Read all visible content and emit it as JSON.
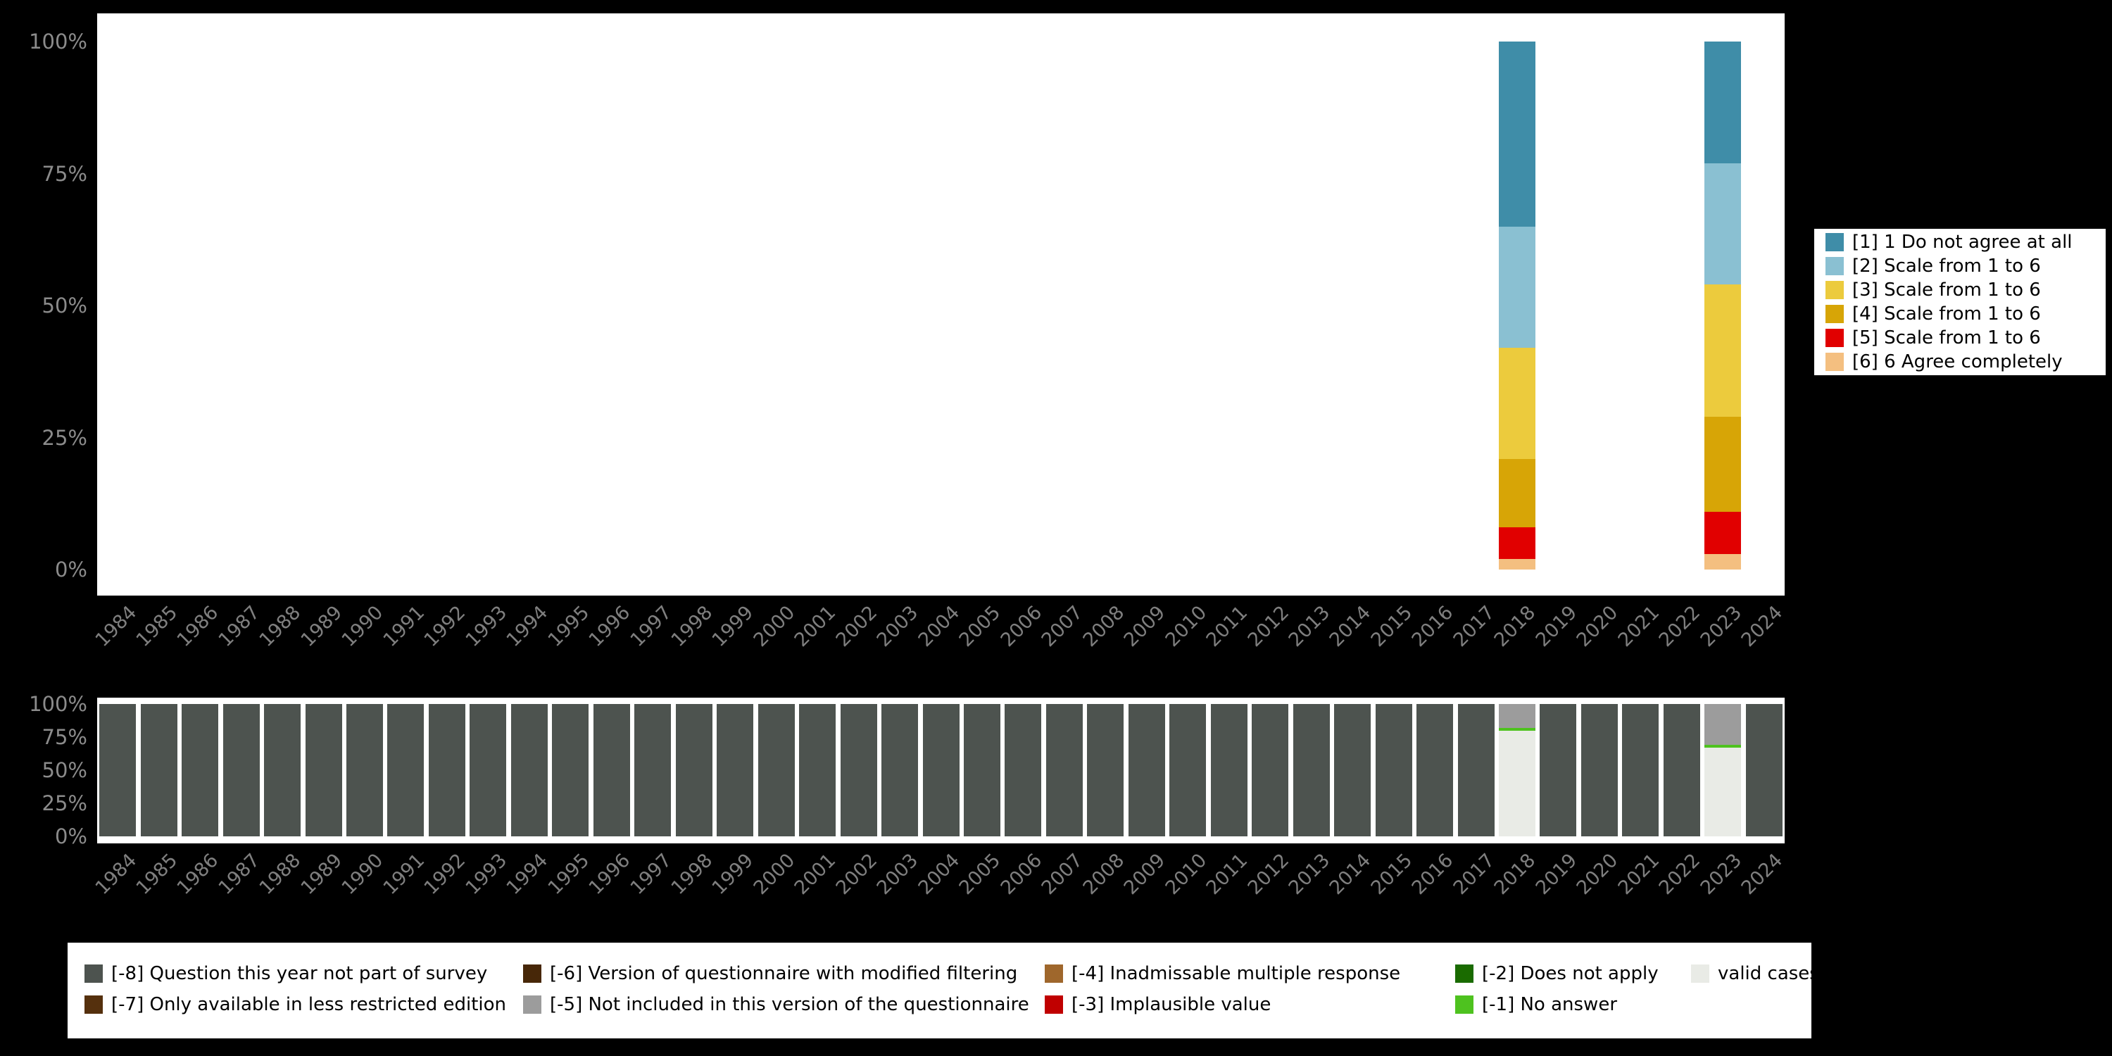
{
  "background_color": "#000000",
  "axes": {
    "years": [
      "1984",
      "1985",
      "1986",
      "1987",
      "1988",
      "1989",
      "1990",
      "1991",
      "1992",
      "1993",
      "1994",
      "1995",
      "1996",
      "1997",
      "1998",
      "1999",
      "2000",
      "2001",
      "2002",
      "2003",
      "2004",
      "2005",
      "2006",
      "2007",
      "2008",
      "2009",
      "2010",
      "2011",
      "2012",
      "2013",
      "2014",
      "2015",
      "2016",
      "2017",
      "2018",
      "2019",
      "2020",
      "2021",
      "2022",
      "2023",
      "2024"
    ]
  },
  "chart_data": [
    {
      "id": "distribution",
      "type": "bar",
      "stacked": true,
      "title": "",
      "xlabel": "",
      "ylabel": "",
      "ylim": [
        0,
        100
      ],
      "grid": false,
      "legend_position": "right",
      "y_tick_labels": [
        "100%",
        "75%",
        "50%",
        "25%",
        "0%"
      ],
      "categories": [
        "1984",
        "1985",
        "1986",
        "1987",
        "1988",
        "1989",
        "1990",
        "1991",
        "1992",
        "1993",
        "1994",
        "1995",
        "1996",
        "1997",
        "1998",
        "1999",
        "2000",
        "2001",
        "2002",
        "2003",
        "2004",
        "2005",
        "2006",
        "2007",
        "2008",
        "2009",
        "2010",
        "2011",
        "2012",
        "2013",
        "2014",
        "2015",
        "2016",
        "2017",
        "2018",
        "2019",
        "2020",
        "2021",
        "2022",
        "2023",
        "2024"
      ],
      "series": [
        {
          "name": "[1] 1 Do not agree at all",
          "color": "#3f8da8",
          "values_by_year": {
            "2018": 35,
            "2023": 23
          }
        },
        {
          "name": "[2] Scale from 1 to 6",
          "color": "#8ac0d2",
          "values_by_year": {
            "2018": 23,
            "2023": 23
          }
        },
        {
          "name": "[3] Scale from 1 to 6",
          "color": "#eccb3d",
          "values_by_year": {
            "2018": 21,
            "2023": 25
          }
        },
        {
          "name": "[4] Scale from 1 to 6",
          "color": "#d7a506",
          "values_by_year": {
            "2018": 13,
            "2023": 18
          }
        },
        {
          "name": "[5] Scale from 1 to 6",
          "color": "#e10000",
          "values_by_year": {
            "2018": 6,
            "2023": 8
          }
        },
        {
          "name": "[6] 6 Agree completely",
          "color": "#f4bf80",
          "values_by_year": {
            "2018": 2,
            "2023": 3
          }
        }
      ]
    },
    {
      "id": "missing-values",
      "type": "bar",
      "stacked": true,
      "title": "",
      "xlabel": "",
      "ylabel": "",
      "ylim": [
        0,
        100
      ],
      "grid": false,
      "legend_position": "bottom",
      "y_tick_labels": [
        "100%",
        "75%",
        "50%",
        "25%",
        "0%"
      ],
      "categories": [
        "1984",
        "1985",
        "1986",
        "1987",
        "1988",
        "1989",
        "1990",
        "1991",
        "1992",
        "1993",
        "1994",
        "1995",
        "1996",
        "1997",
        "1998",
        "1999",
        "2000",
        "2001",
        "2002",
        "2003",
        "2004",
        "2005",
        "2006",
        "2007",
        "2008",
        "2009",
        "2010",
        "2011",
        "2012",
        "2013",
        "2014",
        "2015",
        "2016",
        "2017",
        "2018",
        "2019",
        "2020",
        "2021",
        "2022",
        "2023",
        "2024"
      ],
      "series": [
        {
          "name": "[-5] Not included in this version of the questionnaire",
          "color": "#9c9c9c",
          "values_by_year": {
            "2018": 18,
            "2023": 31
          }
        },
        {
          "name": "[-1] No answer",
          "color": "#4ec21f",
          "values_by_year": {
            "2018": 2,
            "2023": 2
          }
        },
        {
          "name": "valid cases",
          "color": "#e9ebe6",
          "values_by_year": {
            "2018": 80,
            "2023": 67
          }
        },
        {
          "name": "[-8] Question this year not part of survey",
          "color": "#4d534f",
          "values_by_year": {
            "1984": 100,
            "1985": 100,
            "1986": 100,
            "1987": 100,
            "1988": 100,
            "1989": 100,
            "1990": 100,
            "1991": 100,
            "1992": 100,
            "1993": 100,
            "1994": 100,
            "1995": 100,
            "1996": 100,
            "1997": 100,
            "1998": 100,
            "1999": 100,
            "2000": 100,
            "2001": 100,
            "2002": 100,
            "2003": 100,
            "2004": 100,
            "2005": 100,
            "2006": 100,
            "2007": 100,
            "2008": 100,
            "2009": 100,
            "2010": 100,
            "2011": 100,
            "2012": 100,
            "2013": 100,
            "2014": 100,
            "2015": 100,
            "2016": 100,
            "2017": 100,
            "2019": 100,
            "2020": 100,
            "2021": 100,
            "2022": 100,
            "2024": 100
          }
        }
      ]
    }
  ],
  "legend_top": {
    "items": [
      {
        "label": "[1] 1 Do not agree at all",
        "color": "#3f8da8"
      },
      {
        "label": "[2] Scale from 1 to 6",
        "color": "#8ac0d2"
      },
      {
        "label": "[3] Scale from 1 to 6",
        "color": "#eccb3d"
      },
      {
        "label": "[4] Scale from 1 to 6",
        "color": "#d7a506"
      },
      {
        "label": "[5] Scale from 1 to 6",
        "color": "#e10000"
      },
      {
        "label": "[6] 6 Agree completely",
        "color": "#f4bf80"
      }
    ]
  },
  "legend_bottom": {
    "columns": [
      {
        "items": [
          {
            "label": "[-8] Question this year not part of survey",
            "color": "#4d534f"
          },
          {
            "label": "[-7] Only available in less restricted edition",
            "color": "#55300d"
          }
        ]
      },
      {
        "items": [
          {
            "label": "[-6] Version of questionnaire with modified filtering",
            "color": "#472708"
          },
          {
            "label": "[-5] Not included in this version of the questionnaire",
            "color": "#9c9c9c"
          }
        ]
      },
      {
        "items": [
          {
            "label": "[-4] Inadmissable multiple response",
            "color": "#9f672c"
          },
          {
            "label": "[-3] Implausible value",
            "color": "#c00000"
          }
        ]
      },
      {
        "items": [
          {
            "label": "[-2] Does not apply",
            "color": "#1a6b00"
          },
          {
            "label": "[-1] No answer",
            "color": "#4ec21f"
          }
        ]
      },
      {
        "items": [
          {
            "label": "valid cases",
            "color": "#e9ebe6"
          }
        ]
      }
    ]
  }
}
